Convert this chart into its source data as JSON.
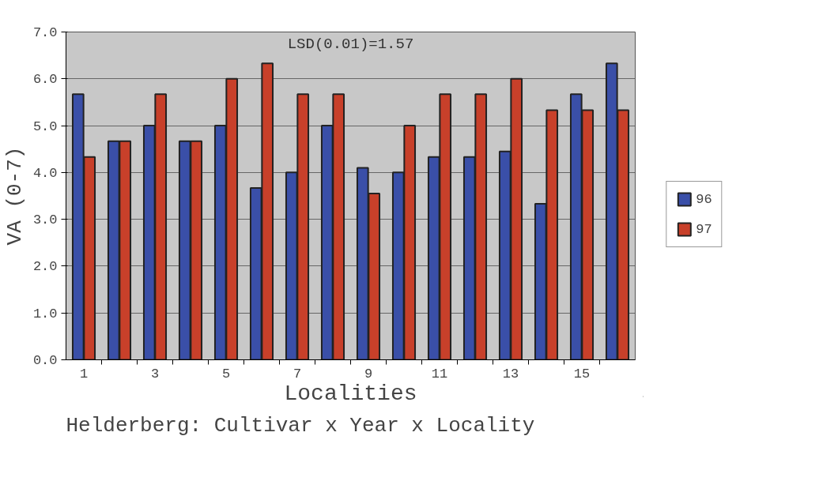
{
  "chart_data": {
    "type": "bar",
    "title": "Helderberg: Cultivar x Year x Locality",
    "xlabel": "Localities",
    "ylabel": "VA (0-7)",
    "annotations": [
      "LSD(0.01)=1.57"
    ],
    "x": [
      1,
      2,
      3,
      4,
      5,
      6,
      7,
      8,
      9,
      10,
      11,
      12,
      13,
      14,
      15,
      16
    ],
    "xlim": [
      0.5,
      16.5
    ],
    "xticks": [
      1,
      3,
      5,
      7,
      9,
      11,
      13,
      15
    ],
    "series": [
      {
        "name": "96",
        "color": "#3a4fa8",
        "values": [
          5.67,
          4.67,
          5.0,
          4.67,
          5.0,
          3.67,
          4.0,
          5.0,
          4.1,
          4.0,
          4.33,
          4.33,
          4.45,
          3.33,
          5.67,
          6.33
        ]
      },
      {
        "name": "97",
        "color": "#c8402a",
        "values": [
          4.33,
          4.67,
          5.67,
          4.67,
          6.0,
          6.33,
          5.67,
          5.67,
          3.55,
          5.0,
          5.67,
          5.67,
          6.0,
          5.33,
          5.33,
          5.33
        ]
      }
    ],
    "ylim": [
      0,
      7
    ],
    "yticks": [
      {
        "value": 0,
        "label": "0.0"
      },
      {
        "value": 1,
        "label": "1.0"
      },
      {
        "value": 2,
        "label": "2.0"
      },
      {
        "value": 3,
        "label": "3.0"
      },
      {
        "value": 4,
        "label": "4.0"
      },
      {
        "value": 5,
        "label": "5.0"
      },
      {
        "value": 6,
        "label": "6.0"
      },
      {
        "value": 7,
        "label": "7.0"
      }
    ],
    "grid": "y",
    "legend": "right"
  }
}
